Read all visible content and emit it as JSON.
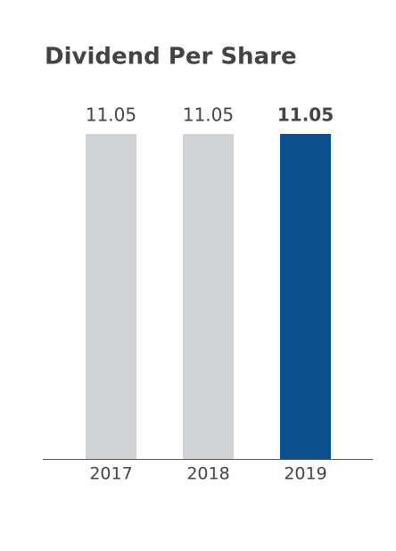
{
  "chart_data": {
    "type": "bar",
    "title": "Dividend Per Share",
    "categories": [
      "2017",
      "2018",
      "2019"
    ],
    "values": [
      11.05,
      11.05,
      11.05
    ],
    "colors": [
      "#d1d2d3",
      "#d1d2d3",
      "#0b4f8f"
    ],
    "highlight_index": 2
  }
}
